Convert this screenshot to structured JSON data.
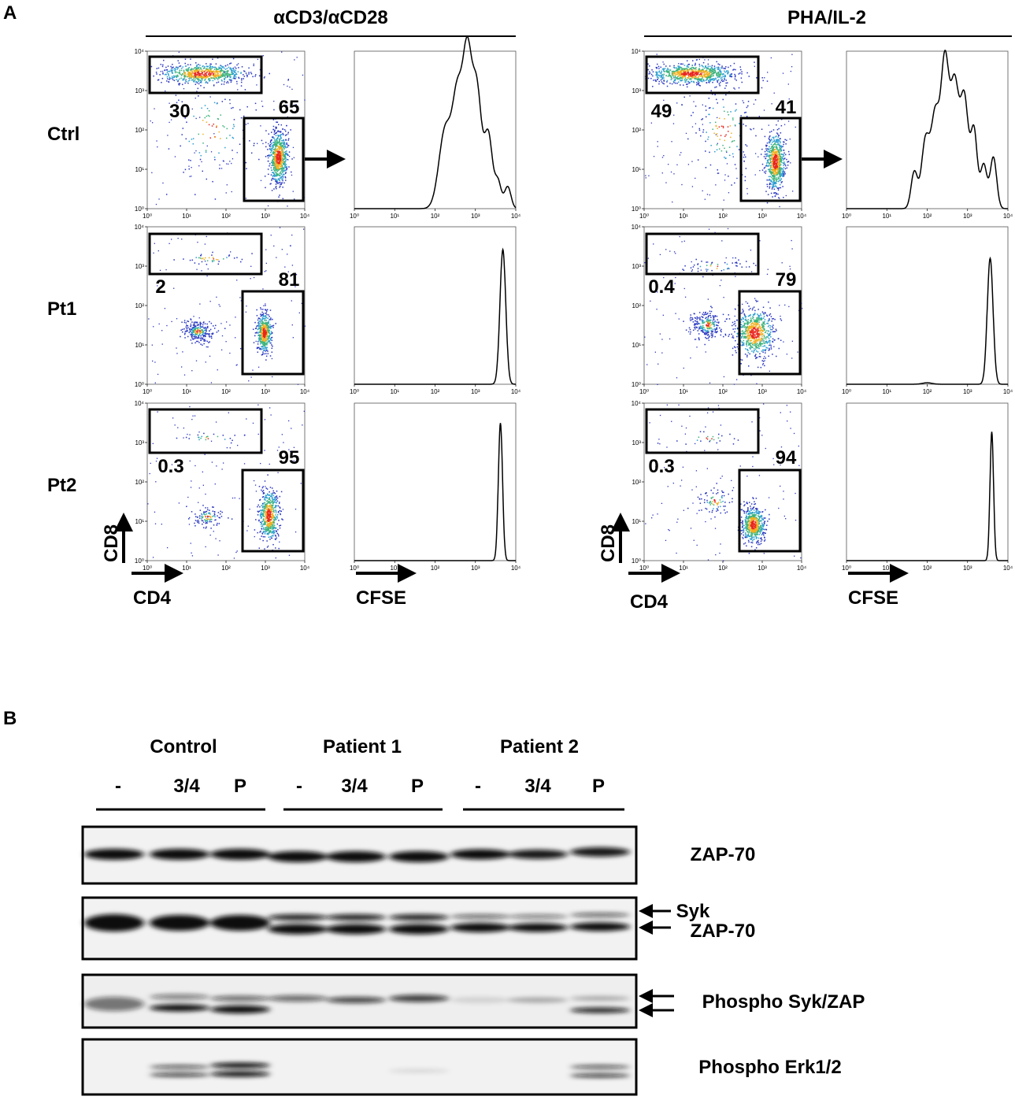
{
  "panel_a": {
    "label": "A",
    "row_labels": [
      "Ctrl",
      "Pt1",
      "Pt2"
    ],
    "axis_ticks": [
      "10⁰",
      "10¹",
      "10²",
      "10³",
      "10⁴"
    ],
    "y_axis_label": "CD8",
    "x_axis_label": "CD4",
    "hist_axis_label": "CFSE",
    "conditions": [
      {
        "title": "αCD3/αCD28",
        "gates": [
          [
            "30",
            "65"
          ],
          [
            "2",
            "81"
          ],
          [
            "0.3",
            "95"
          ]
        ]
      },
      {
        "title": "PHA/IL-2",
        "gates": [
          [
            "49",
            "41"
          ],
          [
            "0.4",
            "79"
          ],
          [
            "0.3",
            "94"
          ]
        ]
      }
    ]
  },
  "panel_b": {
    "label": "B",
    "groups": [
      {
        "name": "Control",
        "lanes": [
          "-",
          "3/4",
          "P"
        ]
      },
      {
        "name": "Patient 1",
        "lanes": [
          "-",
          "3/4",
          "P"
        ]
      },
      {
        "name": "Patient 2",
        "lanes": [
          "-",
          "3/4",
          "P"
        ]
      }
    ],
    "blots": [
      {
        "labels": [
          "ZAP-70"
        ]
      },
      {
        "labels": [
          "Syk",
          "ZAP-70"
        ]
      },
      {
        "labels": [
          "Phospho Syk/ZAP"
        ]
      },
      {
        "labels": [
          "Phospho Erk1/2"
        ]
      }
    ]
  }
}
